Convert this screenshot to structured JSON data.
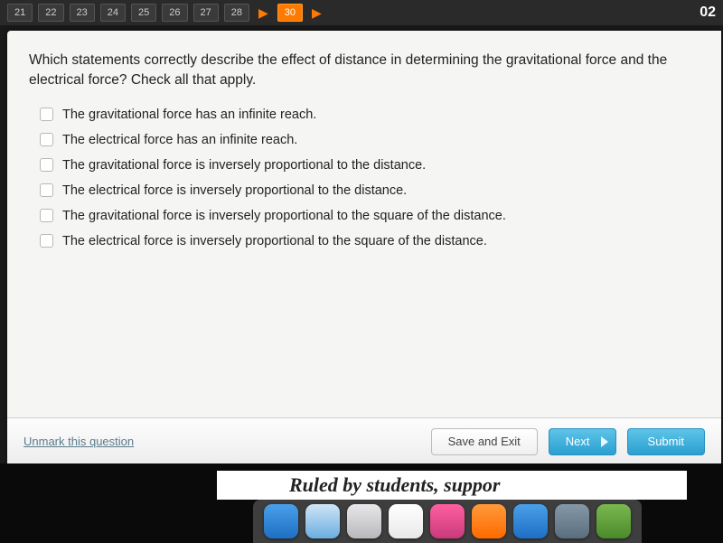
{
  "topbar": {
    "numbers": [
      "21",
      "22",
      "23",
      "24",
      "25",
      "26",
      "27",
      "28",
      "30"
    ],
    "active_index": 8,
    "timer": "02"
  },
  "question": {
    "text": "Which statements correctly describe the effect of distance in determining the gravitational force and the electrical force? Check all that apply."
  },
  "options": [
    {
      "label": "The gravitational force has an infinite reach."
    },
    {
      "label": "The electrical force has an infinite reach."
    },
    {
      "label": "The gravitational force is inversely proportional to the distance."
    },
    {
      "label": "The electrical force is inversely proportional to the distance."
    },
    {
      "label": "The gravitational force is inversely proportional to the square of the distance."
    },
    {
      "label": "The electrical force is inversely proportional to the square of the distance."
    }
  ],
  "footer": {
    "unmark": "Unmark this question",
    "save_exit": "Save and Exit",
    "next": "Next",
    "submit": "Submit"
  },
  "below": {
    "ruled_text": "Ruled by students, suppor"
  },
  "dock": {
    "icons": [
      {
        "name": "finder",
        "bg": "linear-gradient(#4aa0e8,#1d6fc4)"
      },
      {
        "name": "mail",
        "bg": "linear-gradient(#d0e4f5,#6aaee0)"
      },
      {
        "name": "safari",
        "bg": "linear-gradient(#e8e8ea,#b8b8bc)"
      },
      {
        "name": "photos",
        "bg": "linear-gradient(#ffffff,#e8e8e8)"
      },
      {
        "name": "itunes",
        "bg": "linear-gradient(#ff5fa2,#c93a7a)"
      },
      {
        "name": "ibooks",
        "bg": "linear-gradient(#ff9a3a,#ff6a00)"
      },
      {
        "name": "appstore",
        "bg": "linear-gradient(#4aa0e8,#1d6fc4)"
      },
      {
        "name": "system",
        "bg": "linear-gradient(#8498a8,#5a6e7e)"
      },
      {
        "name": "word",
        "bg": "linear-gradient(#7ab850,#4a8a2a)"
      }
    ]
  }
}
